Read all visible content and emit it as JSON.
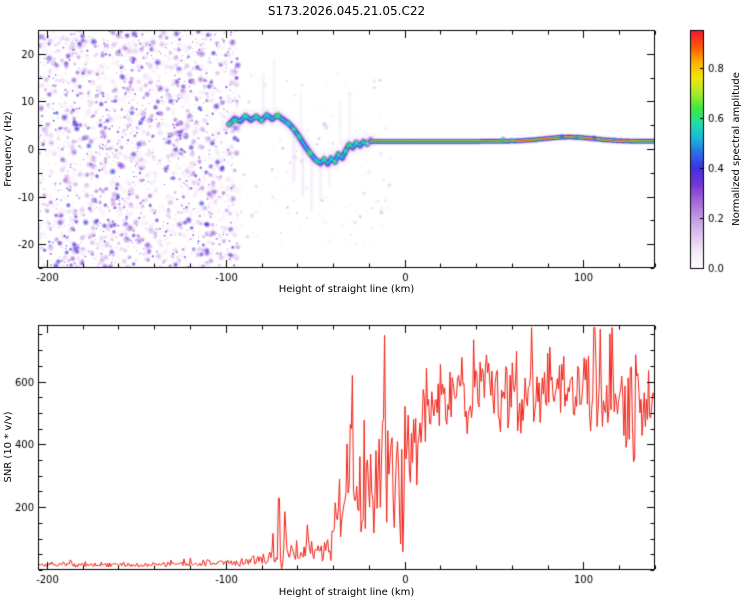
{
  "title": "S173.2026.045.21.05.C22",
  "colors": {
    "background": "#ffffff",
    "axis": "#000000",
    "snr_line": "#f02418"
  },
  "chart_data": [
    {
      "id": "spectrogram",
      "type": "heatmap",
      "xlabel": "Height of straight line (km)",
      "ylabel": "Frequency (Hz)",
      "xlim": [
        -205,
        140
      ],
      "ylim": [
        -25,
        25
      ],
      "xticks": [
        -200,
        -100,
        0,
        100
      ],
      "yticks": [
        -20,
        -10,
        0,
        10,
        20
      ],
      "xminor": 20,
      "yminor": 5,
      "colorbar": {
        "label": "Normalized spectral amplitude",
        "ticks": [
          0.0,
          0.2,
          0.4,
          0.6,
          0.8
        ],
        "range": [
          0,
          0.95
        ]
      },
      "colormap": [
        [
          0.0,
          "#ffffff"
        ],
        [
          0.06,
          "#f6ecf8"
        ],
        [
          0.12,
          "#e4cdf1"
        ],
        [
          0.2,
          "#c49ae6"
        ],
        [
          0.28,
          "#9e5ed8"
        ],
        [
          0.34,
          "#7034d8"
        ],
        [
          0.4,
          "#4130e0"
        ],
        [
          0.46,
          "#2b6ce8"
        ],
        [
          0.52,
          "#17b8dc"
        ],
        [
          0.58,
          "#1fdfa6"
        ],
        [
          0.64,
          "#3fe83c"
        ],
        [
          0.7,
          "#a8ec28"
        ],
        [
          0.76,
          "#f0e60e"
        ],
        [
          0.82,
          "#ffb400"
        ],
        [
          0.88,
          "#ff5c04"
        ],
        [
          0.94,
          "#f1202c"
        ],
        [
          1.0,
          "#d8143c"
        ]
      ],
      "noise": {
        "seed": 11,
        "x_range": [
          -205,
          -93
        ],
        "y_range": [
          -25,
          25
        ],
        "count": 2600
      },
      "sparse_noise": {
        "seed": 23,
        "x_range": [
          -93,
          -8
        ],
        "y_range": [
          -20,
          16
        ],
        "count": 150
      },
      "streaks": [
        [
          -79,
          16,
          5,
          0.08
        ],
        [
          -73,
          19,
          6,
          0.07
        ],
        [
          -62,
          3,
          -7,
          0.1
        ],
        [
          -58,
          12,
          3,
          0.07
        ],
        [
          -57,
          1,
          -10,
          0.1
        ],
        [
          -52,
          -1,
          -13,
          0.09
        ],
        [
          -47,
          -2,
          -11,
          0.09
        ],
        [
          -42,
          -1,
          -8,
          0.08
        ],
        [
          -36,
          10,
          1,
          0.07
        ],
        [
          -31,
          12,
          2,
          0.07
        ]
      ],
      "trace": [
        [
          -98,
          5.2
        ],
        [
          -95,
          6.4
        ],
        [
          -92,
          5.8
        ],
        [
          -89,
          6.9
        ],
        [
          -86,
          6.1
        ],
        [
          -83,
          6.8
        ],
        [
          -80,
          6.0
        ],
        [
          -77,
          7.1
        ],
        [
          -74,
          6.3
        ],
        [
          -71,
          7.0
        ],
        [
          -68,
          6.2
        ],
        [
          -65,
          5.4
        ],
        [
          -62,
          4.2
        ],
        [
          -59,
          2.6
        ],
        [
          -56,
          0.8
        ],
        [
          -53,
          -0.8
        ],
        [
          -50,
          -2.2
        ],
        [
          -47,
          -3.0
        ],
        [
          -45,
          -2.2
        ],
        [
          -43,
          -3.1
        ],
        [
          -41,
          -2.0
        ],
        [
          -39,
          -2.7
        ],
        [
          -37,
          -1.1
        ],
        [
          -35,
          -1.9
        ],
        [
          -33,
          -0.4
        ],
        [
          -31,
          0.9
        ],
        [
          -29,
          0.3
        ],
        [
          -27,
          1.3
        ],
        [
          -25,
          0.7
        ],
        [
          -23,
          1.5
        ],
        [
          -21,
          1.1
        ],
        [
          -19,
          1.8
        ]
      ],
      "trace_core_amp": 0.52,
      "trace_dots_amp": 0.6,
      "carrier": {
        "x_range": [
          -19,
          140
        ],
        "base_freq": 1.6,
        "bump_center": 92,
        "bump_half_width": 20,
        "bump_amp": 0.9,
        "core_amp": 0.92
      },
      "highlights": [
        [
          -95,
          5.8,
          0.62,
          4
        ],
        [
          -89,
          6.9,
          0.58,
          3.5
        ],
        [
          -83,
          6.8,
          0.6,
          4
        ],
        [
          -77,
          7.1,
          0.58,
          3.5
        ],
        [
          -71,
          7.0,
          0.62,
          4
        ],
        [
          -65,
          5.4,
          0.58,
          3.5
        ],
        [
          -59,
          2.6,
          0.6,
          4
        ],
        [
          -53,
          -0.8,
          0.62,
          4
        ],
        [
          -49,
          -2.5,
          0.58,
          4
        ],
        [
          -45,
          -2.2,
          0.6,
          3.5
        ],
        [
          -41,
          -2.0,
          0.58,
          3.5
        ],
        [
          -37,
          -1.1,
          0.6,
          3.5
        ],
        [
          -31,
          0.9,
          0.62,
          4
        ],
        [
          -27,
          1.3,
          0.58,
          3
        ],
        [
          -23,
          1.5,
          0.6,
          3
        ],
        [
          55,
          2.1,
          0.52,
          3.5
        ],
        [
          60,
          1.9,
          0.55,
          3
        ],
        [
          88,
          2.6,
          0.46,
          3.5
        ],
        [
          96,
          2.3,
          0.48,
          3
        ],
        [
          106,
          2.4,
          0.44,
          3
        ],
        [
          117,
          2.0,
          0.5,
          3
        ]
      ]
    },
    {
      "id": "snr",
      "type": "line",
      "xlabel": "Height of straight line (km)",
      "ylabel": "SNR (10 * v/v)",
      "xlim": [
        -205,
        140
      ],
      "ylim": [
        0,
        780
      ],
      "xticks": [
        -200,
        -100,
        0,
        100
      ],
      "yticks": [
        200,
        400,
        600
      ],
      "xminor": 20,
      "yminor": 50,
      "line_color": "#f02418",
      "profile": {
        "seed": 7,
        "step_km": 0.6,
        "spike_prob": 0.045,
        "anchors": [
          [
            -205,
            15,
            10
          ],
          [
            -180,
            15,
            10
          ],
          [
            -160,
            16,
            10
          ],
          [
            -140,
            16,
            10
          ],
          [
            -120,
            18,
            12
          ],
          [
            -105,
            20,
            14
          ],
          [
            -95,
            22,
            16
          ],
          [
            -88,
            26,
            20
          ],
          [
            -82,
            30,
            24
          ],
          [
            -76,
            34,
            28
          ],
          [
            -72,
            50,
            60
          ],
          [
            -69,
            80,
            150
          ],
          [
            -66,
            60,
            60
          ],
          [
            -62,
            40,
            30
          ],
          [
            -58,
            50,
            45
          ],
          [
            -54,
            60,
            55
          ],
          [
            -50,
            55,
            45
          ],
          [
            -46,
            65,
            60
          ],
          [
            -42,
            80,
            80
          ],
          [
            -38,
            120,
            120
          ],
          [
            -34,
            180,
            220
          ],
          [
            -31,
            260,
            380
          ],
          [
            -28,
            200,
            240
          ],
          [
            -25,
            210,
            250
          ],
          [
            -22,
            240,
            260
          ],
          [
            -19,
            260,
            280
          ],
          [
            -16,
            290,
            280
          ],
          [
            -13,
            270,
            260
          ],
          [
            -10,
            320,
            280
          ],
          [
            -7,
            300,
            300
          ],
          [
            -4,
            340,
            300
          ],
          [
            -1,
            300,
            320
          ],
          [
            1,
            220,
            200
          ],
          [
            4,
            380,
            220
          ],
          [
            8,
            450,
            180
          ],
          [
            12,
            500,
            160
          ],
          [
            16,
            520,
            150
          ],
          [
            20,
            540,
            150
          ],
          [
            26,
            550,
            150
          ],
          [
            34,
            560,
            150
          ],
          [
            44,
            570,
            160
          ],
          [
            54,
            575,
            160
          ],
          [
            64,
            575,
            160
          ],
          [
            74,
            570,
            160
          ],
          [
            84,
            565,
            155
          ],
          [
            94,
            560,
            150
          ],
          [
            104,
            555,
            150
          ],
          [
            114,
            550,
            150
          ],
          [
            122,
            545,
            160
          ],
          [
            128,
            500,
            200
          ],
          [
            134,
            540,
            150
          ],
          [
            140,
            550,
            130
          ]
        ]
      }
    }
  ]
}
